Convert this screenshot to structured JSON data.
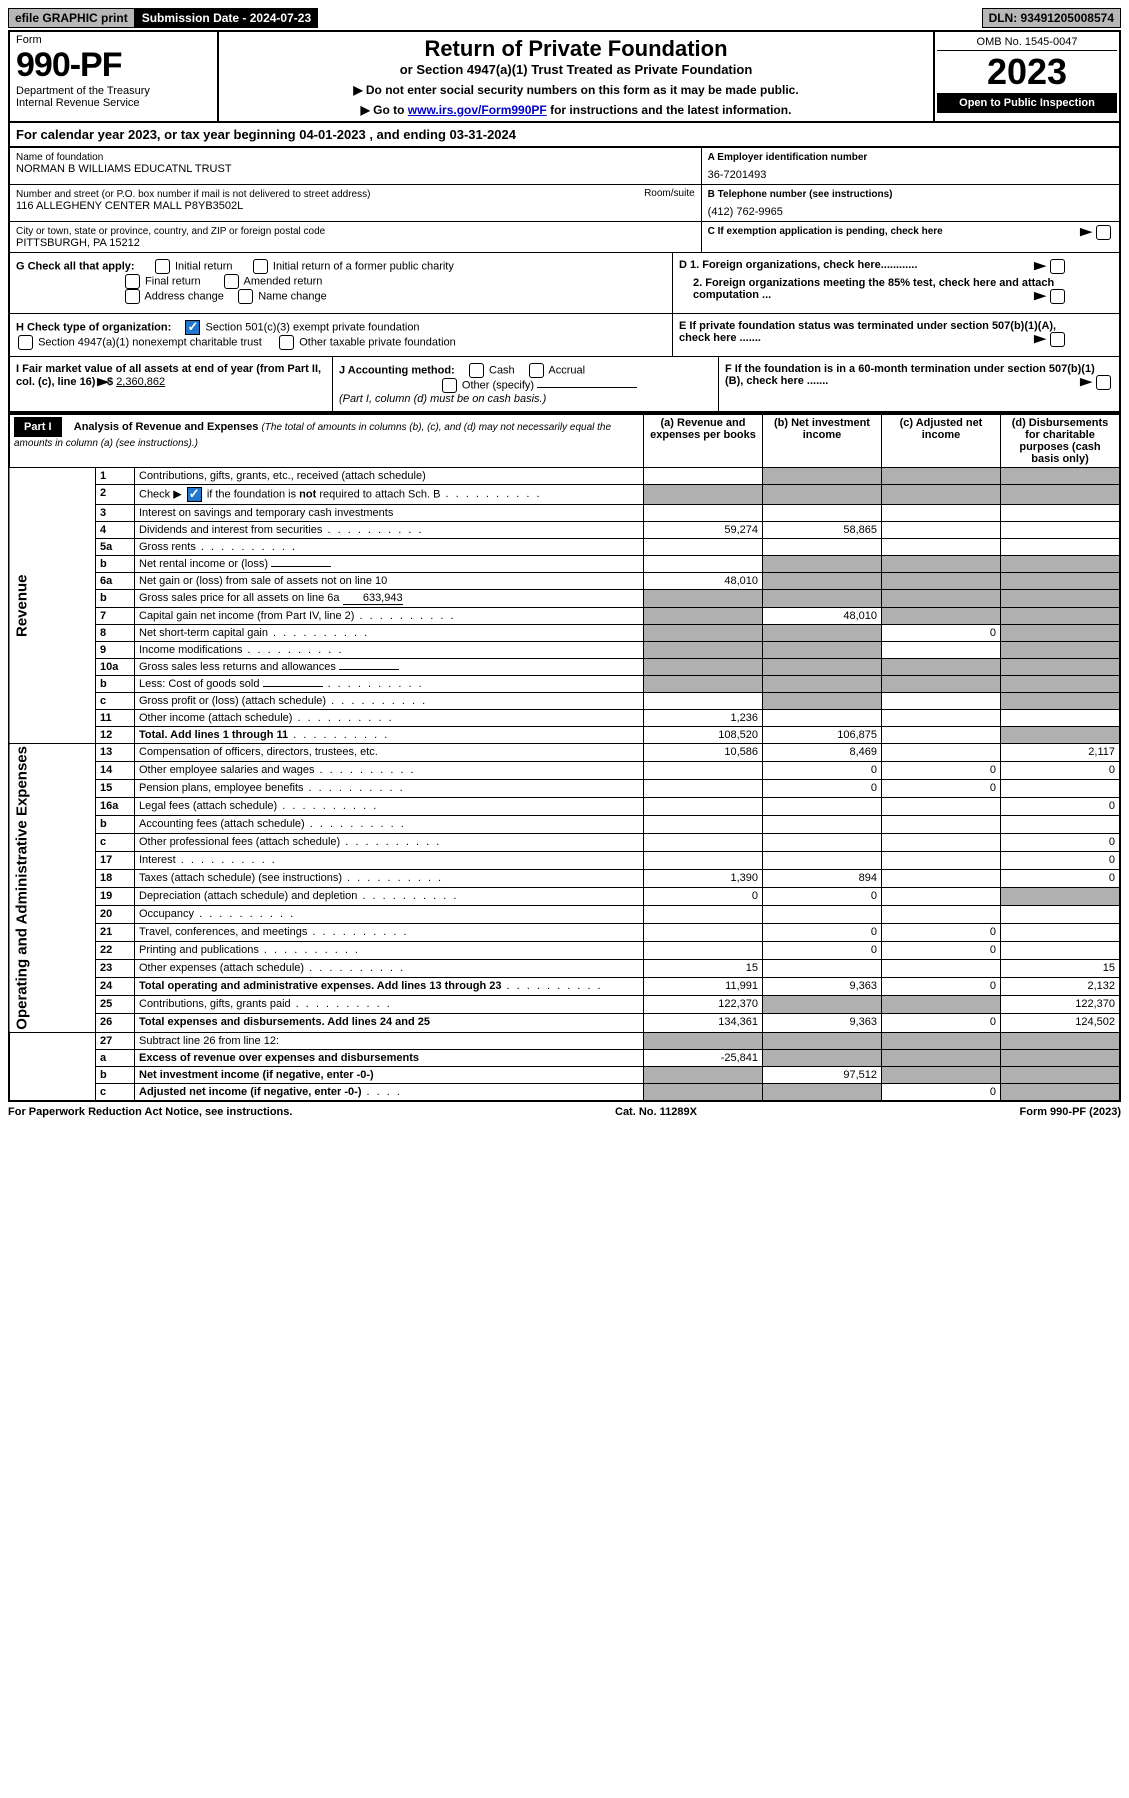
{
  "topbar": {
    "efile_prefix": "efile",
    "efile_graphic": "GRAPHIC",
    "efile_print": "print",
    "subdate_label": "Submission Date - 2024-07-23",
    "dln": "DLN: 93491205008574"
  },
  "header": {
    "form_label": "Form",
    "form_number": "990-PF",
    "dept": "Department of the Treasury",
    "irs": "Internal Revenue Service",
    "title": "Return of Private Foundation",
    "sub1": "or Section 4947(a)(1) Trust Treated as Private Foundation",
    "sub2a": "▶ Do not enter social security numbers on this form as it may be made public.",
    "sub2b_pre": "▶ Go to ",
    "sub2b_link": "www.irs.gov/Form990PF",
    "sub2b_post": " for instructions and the latest information.",
    "omb": "OMB No. 1545-0047",
    "year": "2023",
    "open": "Open to Public Inspection"
  },
  "calyear": "For calendar year 2023, or tax year beginning 04-01-2023               , and ending 03-31-2024",
  "info": {
    "name_lbl": "Name of foundation",
    "name_val": "NORMAN B WILLIAMS EDUCATNL TRUST",
    "addr_lbl": "Number and street (or P.O. box number if mail is not delivered to street address)",
    "addr_val": "116 ALLEGHENY CENTER MALL P8YB3502L",
    "room_lbl": "Room/suite",
    "city_lbl": "City or town, state or province, country, and ZIP or foreign postal code",
    "city_val": "PITTSBURGH, PA  15212",
    "a_lbl": "A Employer identification number",
    "a_val": "36-7201493",
    "b_lbl": "B Telephone number (see instructions)",
    "b_val": "(412) 762-9965",
    "c_lbl": "C If exemption application is pending, check here"
  },
  "g": {
    "label": "G Check all that apply:",
    "initial": "Initial return",
    "initial_former": "Initial return of a former public charity",
    "final": "Final return",
    "amended": "Amended return",
    "addr_change": "Address change",
    "name_change": "Name change"
  },
  "d": {
    "d1": "D 1. Foreign organizations, check here............",
    "d2": "2. Foreign organizations meeting the 85% test, check here and attach computation ...",
    "e": "E  If private foundation status was terminated under section 507(b)(1)(A), check here .......",
    "f": "F  If the foundation is in a 60-month termination under section 507(b)(1)(B), check here ......."
  },
  "h": {
    "label": "H Check type of organization:",
    "c3": "Section 501(c)(3) exempt private foundation",
    "trust": "Section 4947(a)(1) nonexempt charitable trust",
    "other": "Other taxable private foundation"
  },
  "i": {
    "label": "I Fair market value of all assets at end of year (from Part II, col. (c), line 16)",
    "arrow": "▶$",
    "value": "2,360,862",
    "j_label": "J Accounting method:",
    "cash": "Cash",
    "accrual": "Accrual",
    "other": "Other (specify)",
    "note": "(Part I, column (d) must be on cash basis.)"
  },
  "part1": {
    "label": "Part I",
    "title": "Analysis of Revenue and Expenses",
    "title_note": "(The total of amounts in columns (b), (c), and (d) may not necessarily equal the amounts in column (a) (see instructions).)",
    "col_a": "(a)   Revenue and expenses per books",
    "col_b": "(b)   Net investment income",
    "col_c": "(c)   Adjusted net income",
    "col_d": "(d)  Disbursements for charitable purposes (cash basis only)"
  },
  "rev_label": "Revenue",
  "exp_label": "Operating and Administrative Expenses",
  "rows": [
    {
      "n": "1",
      "d": "Contributions, gifts, grants, etc., received (attach schedule)",
      "a": "",
      "b": "g",
      "c": "g",
      "dd": "g"
    },
    {
      "n": "2",
      "d": "Check ▶ ☑ if the foundation is not required to attach Sch. B",
      "dots": true,
      "a": "g",
      "b": "g",
      "c": "g",
      "dd": "g"
    },
    {
      "n": "3",
      "d": "Interest on savings and temporary cash investments"
    },
    {
      "n": "4",
      "d": "Dividends and interest from securities",
      "dots": true,
      "a": "59,274",
      "b": "58,865"
    },
    {
      "n": "5a",
      "d": "Gross rents",
      "dots": true
    },
    {
      "n": "b",
      "d": "Net rental income or (loss)",
      "inline": true,
      "b": "g",
      "c": "g",
      "dd": "g"
    },
    {
      "n": "6a",
      "d": "Net gain or (loss) from sale of assets not on line 10",
      "a": "48,010",
      "b": "g",
      "c": "g",
      "dd": "g"
    },
    {
      "n": "b",
      "d": "Gross sales price for all assets on line 6a",
      "inline": true,
      "inline_val": "633,943",
      "a": "g",
      "b": "g",
      "c": "g",
      "dd": "g"
    },
    {
      "n": "7",
      "d": "Capital gain net income (from Part IV, line 2)",
      "dots": true,
      "a": "g",
      "b": "48,010",
      "c": "g",
      "dd": "g"
    },
    {
      "n": "8",
      "d": "Net short-term capital gain",
      "dots": true,
      "a": "g",
      "b": "g",
      "c": "0",
      "dd": "g"
    },
    {
      "n": "9",
      "d": "Income modifications",
      "dots": true,
      "a": "g",
      "b": "g",
      "dd": "g"
    },
    {
      "n": "10a",
      "d": "Gross sales less returns and allowances",
      "inline": true,
      "a": "g",
      "b": "g",
      "c": "g",
      "dd": "g"
    },
    {
      "n": "b",
      "d": "Less: Cost of goods sold",
      "dots": true,
      "inline": true,
      "a": "g",
      "b": "g",
      "c": "g",
      "dd": "g"
    },
    {
      "n": "c",
      "d": "Gross profit or (loss) (attach schedule)",
      "dots": true,
      "b": "g",
      "dd": "g"
    },
    {
      "n": "11",
      "d": "Other income (attach schedule)",
      "dots": true,
      "a": "1,236"
    },
    {
      "n": "12",
      "d": "Total. Add lines 1 through 11",
      "bold": true,
      "dots": true,
      "a": "108,520",
      "b": "106,875",
      "dd": "g"
    }
  ],
  "exp_rows": [
    {
      "n": "13",
      "d": "Compensation of officers, directors, trustees, etc.",
      "a": "10,586",
      "b": "8,469",
      "dd": "2,117"
    },
    {
      "n": "14",
      "d": "Other employee salaries and wages",
      "dots": true,
      "b": "0",
      "c": "0",
      "dd": "0"
    },
    {
      "n": "15",
      "d": "Pension plans, employee benefits",
      "dots": true,
      "b": "0",
      "c": "0"
    },
    {
      "n": "16a",
      "d": "Legal fees (attach schedule)",
      "dots": true,
      "dd": "0"
    },
    {
      "n": "b",
      "d": "Accounting fees (attach schedule)",
      "dots": true
    },
    {
      "n": "c",
      "d": "Other professional fees (attach schedule)",
      "dots": true,
      "dd": "0"
    },
    {
      "n": "17",
      "d": "Interest",
      "dots": true,
      "dd": "0"
    },
    {
      "n": "18",
      "d": "Taxes (attach schedule) (see instructions)",
      "dots": true,
      "a": "1,390",
      "b": "894",
      "dd": "0"
    },
    {
      "n": "19",
      "d": "Depreciation (attach schedule) and depletion",
      "dots": true,
      "a": "0",
      "b": "0",
      "dd": "g"
    },
    {
      "n": "20",
      "d": "Occupancy",
      "dots": true
    },
    {
      "n": "21",
      "d": "Travel, conferences, and meetings",
      "dots": true,
      "b": "0",
      "c": "0"
    },
    {
      "n": "22",
      "d": "Printing and publications",
      "dots": true,
      "b": "0",
      "c": "0"
    },
    {
      "n": "23",
      "d": "Other expenses (attach schedule)",
      "dots": true,
      "a": "15",
      "dd": "15"
    },
    {
      "n": "24",
      "d": "Total operating and administrative expenses. Add lines 13 through 23",
      "bold": true,
      "dots": true,
      "a": "11,991",
      "b": "9,363",
      "c": "0",
      "dd": "2,132"
    },
    {
      "n": "25",
      "d": "Contributions, gifts, grants paid",
      "dots": true,
      "a": "122,370",
      "b": "g",
      "c": "g",
      "dd": "122,370"
    },
    {
      "n": "26",
      "d": "Total expenses and disbursements. Add lines 24 and 25",
      "bold": true,
      "a": "134,361",
      "b": "9,363",
      "c": "0",
      "dd": "124,502"
    }
  ],
  "final_rows": [
    {
      "n": "27",
      "d": "Subtract line 26 from line 12:",
      "a": "g",
      "b": "g",
      "c": "g",
      "dd": "g"
    },
    {
      "n": "a",
      "d": "Excess of revenue over expenses and disbursements",
      "bold": true,
      "a": "-25,841",
      "b": "g",
      "c": "g",
      "dd": "g"
    },
    {
      "n": "b",
      "d": "Net investment income (if negative, enter -0-)",
      "bold": true,
      "a": "g",
      "b": "97,512",
      "c": "g",
      "dd": "g"
    },
    {
      "n": "c",
      "d": "Adjusted net income (if negative, enter -0-)",
      "bold": true,
      "dots": true,
      "a": "g",
      "b": "g",
      "c": "0",
      "dd": "g"
    }
  ],
  "footer": {
    "left": "For Paperwork Reduction Act Notice, see instructions.",
    "mid": "Cat. No. 11289X",
    "right": "Form 990-PF (2023)"
  }
}
